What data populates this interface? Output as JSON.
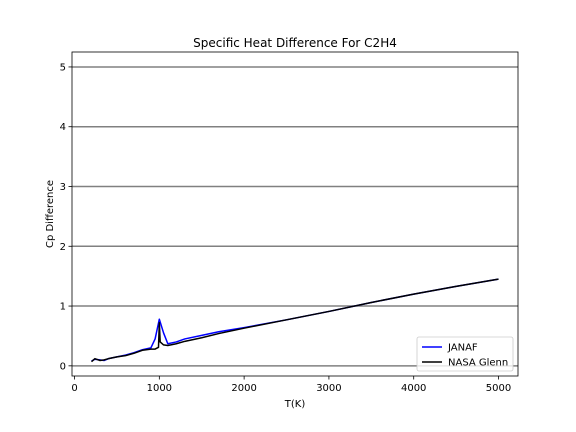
{
  "chart_data": {
    "type": "line",
    "title": "Specific Heat Difference For C2H4",
    "xlabel": "T(K)",
    "ylabel": "Cp Difference",
    "xlim": [
      -30,
      5230
    ],
    "ylim": [
      -0.17,
      5.25
    ],
    "xticks": [
      0,
      1000,
      2000,
      3000,
      4000,
      5000
    ],
    "yticks": [
      0,
      1,
      2,
      3,
      4,
      5
    ],
    "xtick_labels": [
      "0",
      "1000",
      "2000",
      "3000",
      "4000",
      "5000"
    ],
    "ytick_labels": [
      "0",
      "1",
      "2",
      "3",
      "4",
      "5"
    ],
    "grid": "horizontal",
    "legend_position": "lower-right",
    "series": [
      {
        "name": "JANAF",
        "color": "#0000ff",
        "x": [
          200,
          240,
          298,
          350,
          400,
          500,
          600,
          700,
          800,
          900,
          950,
          1000,
          1050,
          1100,
          1200,
          1300,
          1500,
          1700,
          2000,
          2500,
          3000,
          3500,
          4000,
          4500,
          5000
        ],
        "y": [
          0.08,
          0.11,
          0.1,
          0.09,
          0.12,
          0.15,
          0.18,
          0.22,
          0.27,
          0.3,
          0.45,
          0.78,
          0.55,
          0.37,
          0.4,
          0.45,
          0.51,
          0.57,
          0.64,
          0.77,
          0.91,
          1.06,
          1.2,
          1.33,
          1.45
        ]
      },
      {
        "name": "NASA Glenn",
        "color": "#000000",
        "x": [
          200,
          240,
          298,
          350,
          400,
          500,
          600,
          700,
          800,
          900,
          950,
          990,
          1000,
          1010,
          1050,
          1100,
          1200,
          1300,
          1500,
          1700,
          2000,
          2500,
          3000,
          3500,
          4000,
          4500,
          5000
        ],
        "y": [
          0.07,
          0.12,
          0.09,
          0.1,
          0.12,
          0.15,
          0.17,
          0.21,
          0.26,
          0.28,
          0.28,
          0.31,
          0.72,
          0.4,
          0.35,
          0.34,
          0.37,
          0.41,
          0.47,
          0.54,
          0.63,
          0.77,
          0.91,
          1.06,
          1.2,
          1.33,
          1.45
        ]
      }
    ]
  }
}
